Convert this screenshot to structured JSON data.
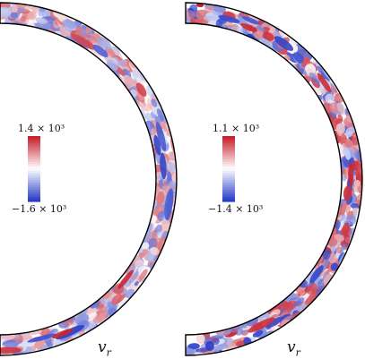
{
  "panels": [
    {
      "colorbar": {
        "max_text": "1.4 × 10³",
        "min_text": "−1.6 × 10³"
      },
      "variable": {
        "symbol": "v",
        "subscript": "r"
      },
      "pattern_seed": 7
    },
    {
      "colorbar": {
        "max_text": "1.1 × 10³",
        "min_text": "−1.4 × 10³"
      },
      "variable": {
        "symbol": "v",
        "subscript": "r"
      },
      "pattern_seed": 13
    }
  ],
  "colors": {
    "positive": "#c8202c",
    "negative": "#2a3ec8",
    "neutral": "#ffffff",
    "outline": "#000000"
  }
}
